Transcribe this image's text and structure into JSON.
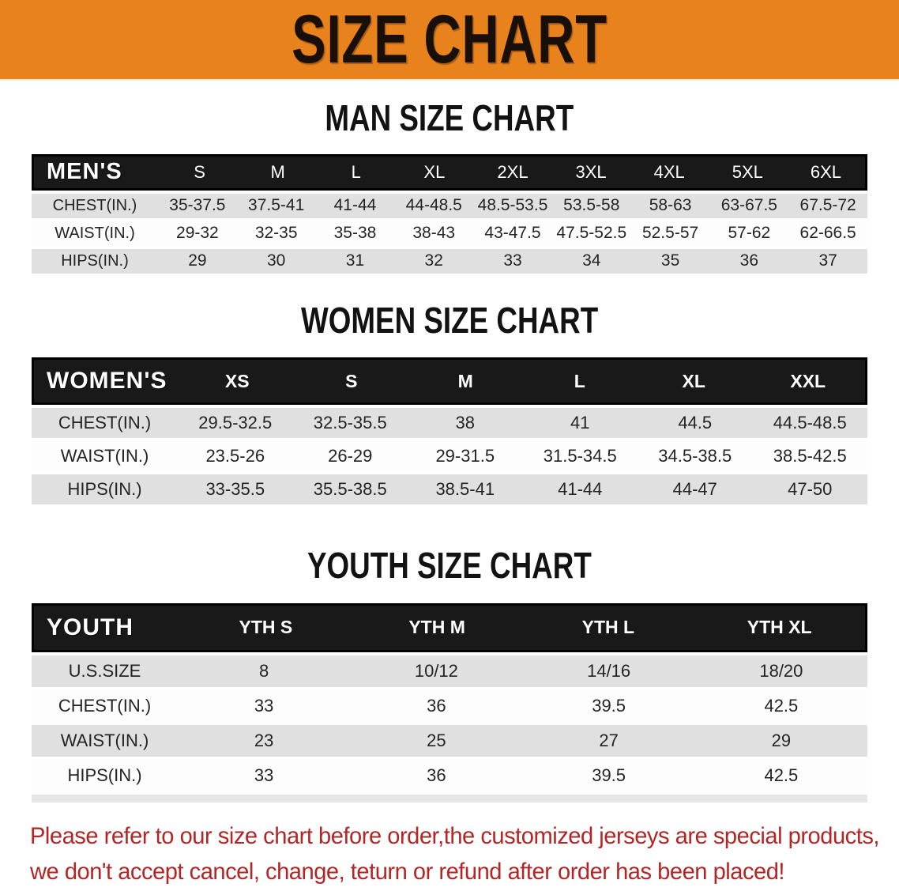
{
  "banner": {
    "title": "SIZE CHART",
    "bg_color": "#E8821D",
    "text_color": "#181008"
  },
  "colors": {
    "header_bar_bg": "#191919",
    "row_alt_bg": "#E0E0E0",
    "disclaimer_color": "#B22626"
  },
  "sections": [
    {
      "title": "MAN SIZE CHART",
      "header_label": "MEN'S",
      "columns": [
        "S",
        "M",
        "L",
        "XL",
        "2XL",
        "3XL",
        "4XL",
        "5XL",
        "6XL"
      ],
      "rows": [
        {
          "label": "CHEST(IN.)",
          "values": [
            "35-37.5",
            "37.5-41",
            "41-44",
            "44-48.5",
            "48.5-53.5",
            "53.5-58",
            "58-63",
            "63-67.5",
            "67.5-72"
          ]
        },
        {
          "label": "WAIST(IN.)",
          "values": [
            "29-32",
            "32-35",
            "35-38",
            "38-43",
            "43-47.5",
            "47.5-52.5",
            "52.5-57",
            "57-62",
            "62-66.5"
          ]
        },
        {
          "label": "HIPS(IN.)",
          "values": [
            "29",
            "30",
            "31",
            "32",
            "33",
            "34",
            "35",
            "36",
            "37"
          ]
        }
      ]
    },
    {
      "title": "WOMEN SIZE CHART",
      "header_label": "WOMEN'S",
      "columns": [
        "XS",
        "S",
        "M",
        "L",
        "XL",
        "XXL"
      ],
      "rows": [
        {
          "label": "CHEST(IN.)",
          "values": [
            "29.5-32.5",
            "32.5-35.5",
            "38",
            "41",
            "44.5",
            "44.5-48.5"
          ]
        },
        {
          "label": "WAIST(IN.)",
          "values": [
            "23.5-26",
            "26-29",
            "29-31.5",
            "31.5-34.5",
            "34.5-38.5",
            "38.5-42.5"
          ]
        },
        {
          "label": "HIPS(IN.)",
          "values": [
            "33-35.5",
            "35.5-38.5",
            "38.5-41",
            "41-44",
            "44-47",
            "47-50"
          ]
        }
      ]
    },
    {
      "title": "YOUTH SIZE CHART",
      "header_label": "YOUTH",
      "columns": [
        "YTH S",
        "YTH M",
        "YTH L",
        "YTH XL"
      ],
      "rows": [
        {
          "label": "U.S.SIZE",
          "values": [
            "8",
            "10/12",
            "14/16",
            "18/20"
          ]
        },
        {
          "label": "CHEST(IN.)",
          "values": [
            "33",
            "36",
            "39.5",
            "42.5"
          ]
        },
        {
          "label": "WAIST(IN.)",
          "values": [
            "23",
            "25",
            "27",
            "29"
          ]
        },
        {
          "label": "HIPS(IN.)",
          "values": [
            "33",
            "36",
            "39.5",
            "42.5"
          ]
        }
      ]
    }
  ],
  "disclaimer": {
    "line1": "Please refer to our size chart before order,the customized jerseys are special products,",
    "line2": "we don't accept cancel, change, teturn or refund after order has been placed!"
  }
}
